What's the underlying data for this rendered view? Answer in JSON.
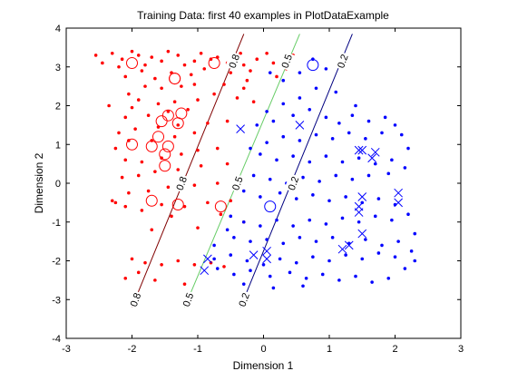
{
  "chart_data": {
    "type": "scatter",
    "title": "Training Data: first 40 examples in PlotDataExample",
    "xlabel": "Dimension 1",
    "ylabel": "Dimension 2",
    "xlim": [
      -3,
      3
    ],
    "ylim": [
      -4,
      4
    ],
    "xticks": [
      "-3",
      "-2",
      "-1",
      "0",
      "1",
      "2",
      "3"
    ],
    "yticks": [
      "-4",
      "-3",
      "-2",
      "-1",
      "0",
      "1",
      "2",
      "3",
      "4"
    ],
    "grid": false,
    "legend": "none",
    "colors": {
      "class_red": "#ff0000",
      "class_blue": "#0000ff",
      "contour_0_8": "#800000",
      "contour_0_5": "#66cc66",
      "contour_0_2": "#000080"
    },
    "series": [
      {
        "class": "red",
        "marker": "dot",
        "points": [
          [
            -2.55,
            3.3
          ],
          [
            -2.45,
            3.1
          ],
          [
            -2.3,
            3.35
          ],
          [
            -2.2,
            3.0
          ],
          [
            -2.15,
            3.2
          ],
          [
            -2.0,
            3.4
          ],
          [
            -1.9,
            3.3
          ],
          [
            -1.8,
            3.05
          ],
          [
            -1.7,
            3.25
          ],
          [
            -1.55,
            3.15
          ],
          [
            -1.45,
            3.4
          ],
          [
            -1.3,
            3.3
          ],
          [
            -1.2,
            3.05
          ],
          [
            -1.05,
            3.15
          ],
          [
            -0.95,
            3.35
          ],
          [
            -0.8,
            3.2
          ],
          [
            -0.7,
            3.25
          ],
          [
            -0.55,
            3.1
          ],
          [
            -0.4,
            3.3
          ],
          [
            -0.3,
            3.05
          ],
          [
            -0.2,
            2.9
          ],
          [
            -0.1,
            3.2
          ],
          [
            0.05,
            3.35
          ],
          [
            0.15,
            3.1
          ],
          [
            0.3,
            3.2
          ],
          [
            0.35,
            2.95
          ],
          [
            -0.5,
            2.85
          ],
          [
            -0.9,
            2.95
          ],
          [
            -1.1,
            2.8
          ],
          [
            -1.4,
            2.85
          ],
          [
            -1.65,
            2.7
          ],
          [
            -1.85,
            2.9
          ],
          [
            -2.1,
            2.75
          ],
          [
            -0.25,
            2.65
          ],
          [
            -0.6,
            2.55
          ],
          [
            -1.25,
            2.5
          ],
          [
            -1.55,
            2.45
          ],
          [
            -1.8,
            2.5
          ],
          [
            -2.05,
            2.3
          ],
          [
            -0.4,
            2.2
          ],
          [
            -0.75,
            2.3
          ],
          [
            -1.0,
            2.15
          ],
          [
            -1.35,
            2.1
          ],
          [
            -1.6,
            2.05
          ],
          [
            -1.9,
            2.15
          ],
          [
            -2.0,
            1.95
          ],
          [
            -1.15,
            1.9
          ],
          [
            -1.45,
            1.85
          ],
          [
            -1.75,
            1.75
          ],
          [
            -2.1,
            1.7
          ],
          [
            -0.55,
            1.6
          ],
          [
            -0.85,
            1.55
          ],
          [
            -1.3,
            1.5
          ],
          [
            -1.6,
            1.45
          ],
          [
            -1.95,
            1.4
          ],
          [
            -2.2,
            1.3
          ],
          [
            -1.05,
            1.3
          ],
          [
            -1.35,
            1.2
          ],
          [
            -1.7,
            1.1
          ],
          [
            -2.05,
            1.1
          ],
          [
            -2.25,
            0.9
          ],
          [
            -0.7,
            0.9
          ],
          [
            -1.0,
            0.85
          ],
          [
            -1.25,
            0.75
          ],
          [
            -1.55,
            0.65
          ],
          [
            -1.85,
            0.55
          ],
          [
            -2.1,
            0.6
          ],
          [
            -0.55,
            0.5
          ],
          [
            -0.95,
            0.45
          ],
          [
            -1.3,
            0.35
          ],
          [
            -1.65,
            0.3
          ],
          [
            -1.9,
            0.2
          ],
          [
            -2.15,
            0.15
          ],
          [
            -0.7,
            0.0
          ],
          [
            -1.05,
            -0.05
          ],
          [
            -1.45,
            -0.1
          ],
          [
            -1.75,
            -0.2
          ],
          [
            -2.05,
            -0.25
          ],
          [
            -2.3,
            -0.45
          ],
          [
            -0.5,
            -0.45
          ],
          [
            -0.85,
            -0.5
          ],
          [
            -1.2,
            -0.6
          ],
          [
            -1.55,
            -0.55
          ],
          [
            -1.85,
            -0.7
          ],
          [
            -2.1,
            -0.6
          ],
          [
            -0.65,
            -0.8
          ],
          [
            -1.4,
            -0.85
          ],
          [
            -2.25,
            -0.5
          ],
          [
            -0.3,
            -1.0
          ],
          [
            -1.0,
            -1.15
          ],
          [
            -1.7,
            -1.2
          ],
          [
            -2.0,
            -1.95
          ],
          [
            -1.8,
            -2.05
          ],
          [
            -1.55,
            -2.1
          ],
          [
            -1.3,
            -2.0
          ],
          [
            -1.05,
            -2.1
          ],
          [
            -0.8,
            -2.05
          ],
          [
            -0.6,
            -2.15
          ],
          [
            -1.9,
            -2.3
          ],
          [
            -2.1,
            -2.45
          ],
          [
            -1.65,
            -2.5
          ],
          [
            -1.2,
            -2.6
          ],
          [
            -2.0,
            -2.95
          ],
          [
            -0.3,
            2.45
          ],
          [
            0.2,
            2.75
          ],
          [
            -0.15,
            2.1
          ],
          [
            -2.35,
            2.0
          ],
          [
            -1.05,
            2.55
          ],
          [
            -0.35,
            3.35
          ],
          [
            0.45,
            3.3
          ]
        ]
      },
      {
        "class": "red",
        "marker": "circle",
        "points": [
          [
            -2.0,
            3.1
          ],
          [
            -1.35,
            2.7
          ],
          [
            -0.75,
            3.1
          ],
          [
            -1.25,
            1.8
          ],
          [
            -1.55,
            1.6
          ],
          [
            -1.3,
            1.55
          ],
          [
            -1.45,
            1.75
          ],
          [
            -1.6,
            1.2
          ],
          [
            -1.45,
            0.95
          ],
          [
            -1.7,
            0.95
          ],
          [
            -2.0,
            1.0
          ],
          [
            -1.5,
            0.75
          ],
          [
            -1.5,
            0.45
          ],
          [
            -1.7,
            -0.45
          ],
          [
            -1.3,
            -0.55
          ],
          [
            -0.65,
            -0.6
          ],
          [
            -1.35,
            2.7
          ]
        ]
      },
      {
        "class": "blue",
        "marker": "dot",
        "points": [
          [
            0.1,
            2.85
          ],
          [
            0.3,
            2.65
          ],
          [
            0.55,
            2.85
          ],
          [
            0.75,
            3.2
          ],
          [
            0.95,
            2.95
          ],
          [
            0.8,
            2.45
          ],
          [
            0.55,
            2.2
          ],
          [
            0.3,
            2.05
          ],
          [
            0.05,
            1.85
          ],
          [
            -0.1,
            1.5
          ],
          [
            0.15,
            1.6
          ],
          [
            0.45,
            1.75
          ],
          [
            0.7,
            1.9
          ],
          [
            0.95,
            1.7
          ],
          [
            1.15,
            1.55
          ],
          [
            1.35,
            1.75
          ],
          [
            1.6,
            1.6
          ],
          [
            1.85,
            1.7
          ],
          [
            2.0,
            1.5
          ],
          [
            2.1,
            1.25
          ],
          [
            1.8,
            1.3
          ],
          [
            1.55,
            1.15
          ],
          [
            1.3,
            1.3
          ],
          [
            1.05,
            1.15
          ],
          [
            0.8,
            1.25
          ],
          [
            0.55,
            1.1
          ],
          [
            0.3,
            1.2
          ],
          [
            0.05,
            1.05
          ],
          [
            -0.2,
            0.9
          ],
          [
            -0.05,
            0.75
          ],
          [
            0.2,
            0.6
          ],
          [
            0.45,
            0.7
          ],
          [
            0.7,
            0.55
          ],
          [
            0.95,
            0.7
          ],
          [
            1.2,
            0.55
          ],
          [
            1.45,
            0.65
          ],
          [
            1.7,
            0.5
          ],
          [
            1.95,
            0.6
          ],
          [
            2.15,
            0.4
          ],
          [
            1.9,
            0.25
          ],
          [
            1.6,
            0.2
          ],
          [
            1.35,
            0.1
          ],
          [
            1.1,
            0.2
          ],
          [
            0.85,
            0.05
          ],
          [
            0.6,
            0.15
          ],
          [
            0.35,
            0.0
          ],
          [
            0.1,
            0.1
          ],
          [
            -0.15,
            0.2
          ],
          [
            -0.4,
            0.05
          ],
          [
            -0.3,
            -0.2
          ],
          [
            -0.05,
            -0.35
          ],
          [
            0.25,
            -0.25
          ],
          [
            0.5,
            -0.4
          ],
          [
            0.75,
            -0.3
          ],
          [
            1.0,
            -0.45
          ],
          [
            1.25,
            -0.35
          ],
          [
            1.5,
            -0.5
          ],
          [
            1.75,
            -0.4
          ],
          [
            2.0,
            -0.55
          ],
          [
            2.2,
            -0.8
          ],
          [
            1.95,
            -0.95
          ],
          [
            1.7,
            -0.85
          ],
          [
            1.45,
            -1.0
          ],
          [
            1.2,
            -0.9
          ],
          [
            0.95,
            -1.05
          ],
          [
            0.7,
            -0.95
          ],
          [
            0.45,
            -1.1
          ],
          [
            0.2,
            -0.95
          ],
          [
            -0.05,
            -1.1
          ],
          [
            -0.3,
            -1.0
          ],
          [
            -0.5,
            -0.85
          ],
          [
            -0.45,
            -1.4
          ],
          [
            -0.2,
            -1.5
          ],
          [
            0.05,
            -1.45
          ],
          [
            0.3,
            -1.55
          ],
          [
            0.55,
            -1.4
          ],
          [
            0.8,
            -1.5
          ],
          [
            1.05,
            -1.4
          ],
          [
            1.3,
            -1.55
          ],
          [
            1.55,
            -1.45
          ],
          [
            1.8,
            -1.6
          ],
          [
            2.05,
            -1.5
          ],
          [
            2.25,
            -1.75
          ],
          [
            2.0,
            -1.9
          ],
          [
            1.75,
            -1.8
          ],
          [
            1.5,
            -1.95
          ],
          [
            1.25,
            -1.85
          ],
          [
            1.0,
            -2.0
          ],
          [
            0.75,
            -1.9
          ],
          [
            0.5,
            -2.05
          ],
          [
            0.25,
            -1.95
          ],
          [
            0.0,
            -2.1
          ],
          [
            -0.25,
            -2.0
          ],
          [
            -0.5,
            -1.85
          ],
          [
            -0.75,
            -1.95
          ],
          [
            -0.7,
            -2.2
          ],
          [
            -0.45,
            -2.35
          ],
          [
            -0.2,
            -2.25
          ],
          [
            0.1,
            -2.4
          ],
          [
            0.4,
            -2.3
          ],
          [
            0.65,
            -2.45
          ],
          [
            0.9,
            -2.35
          ],
          [
            1.15,
            -2.5
          ],
          [
            1.4,
            -2.4
          ],
          [
            1.65,
            -2.55
          ],
          [
            1.9,
            -2.45
          ],
          [
            2.15,
            -2.2
          ],
          [
            2.3,
            -2.0
          ],
          [
            -0.3,
            -2.6
          ],
          [
            0.15,
            -2.7
          ],
          [
            0.6,
            -2.65
          ],
          [
            -0.75,
            -1.6
          ],
          [
            1.1,
            2.35
          ],
          [
            1.4,
            2.0
          ],
          [
            2.2,
            0.9
          ],
          [
            2.3,
            -1.3
          ],
          [
            -0.55,
            -1.2
          ]
        ]
      },
      {
        "class": "blue",
        "marker": "circle",
        "points": [
          [
            0.75,
            3.05
          ],
          [
            0.1,
            -0.6
          ]
        ]
      },
      {
        "class": "blue",
        "marker": "cross",
        "points": [
          [
            -0.35,
            1.4
          ],
          [
            0.55,
            1.5
          ],
          [
            1.45,
            0.85
          ],
          [
            1.5,
            0.85
          ],
          [
            1.7,
            0.8
          ],
          [
            1.65,
            0.65
          ],
          [
            1.5,
            -0.35
          ],
          [
            1.45,
            -0.6
          ],
          [
            1.45,
            -0.75
          ],
          [
            2.05,
            -0.25
          ],
          [
            2.05,
            -0.5
          ],
          [
            1.5,
            -1.3
          ],
          [
            1.3,
            -1.6
          ],
          [
            1.2,
            -1.7
          ],
          [
            0.05,
            -1.75
          ],
          [
            0.05,
            -1.95
          ],
          [
            -0.9,
            -2.25
          ],
          [
            -0.85,
            -1.95
          ],
          [
            -0.15,
            -1.85
          ]
        ]
      }
    ],
    "contours": [
      {
        "level": "0.8",
        "segments": [
          [
            [
              -2.0,
              -3.2
            ],
            [
              -0.3,
              3.85
            ]
          ]
        ],
        "labels": [
          {
            "text": "0.8",
            "at": [
              -0.45,
              3.15
            ]
          },
          {
            "text": "0.8",
            "at": [
              -1.25,
              0.0
            ]
          },
          {
            "text": "0.8",
            "at": [
              -1.95,
              -3.0
            ]
          }
        ]
      },
      {
        "level": "0.5",
        "segments": [
          [
            [
              -1.2,
              -3.2
            ],
            [
              0.55,
              3.85
            ]
          ]
        ],
        "labels": [
          {
            "text": "0.5",
            "at": [
              0.35,
              3.15
            ]
          },
          {
            "text": "0.5",
            "at": [
              -0.4,
              0.0
            ]
          },
          {
            "text": "0.5",
            "at": [
              -1.15,
              -3.0
            ]
          }
        ]
      },
      {
        "level": "0.2",
        "segments": [
          [
            [
              -0.35,
              -3.2
            ],
            [
              1.35,
              3.85
            ]
          ]
        ],
        "labels": [
          {
            "text": "0.2",
            "at": [
              1.2,
              3.15
            ]
          },
          {
            "text": "0.2",
            "at": [
              0.45,
              0.0
            ]
          },
          {
            "text": "0.2",
            "at": [
              -0.3,
              -3.0
            ]
          }
        ]
      }
    ]
  }
}
